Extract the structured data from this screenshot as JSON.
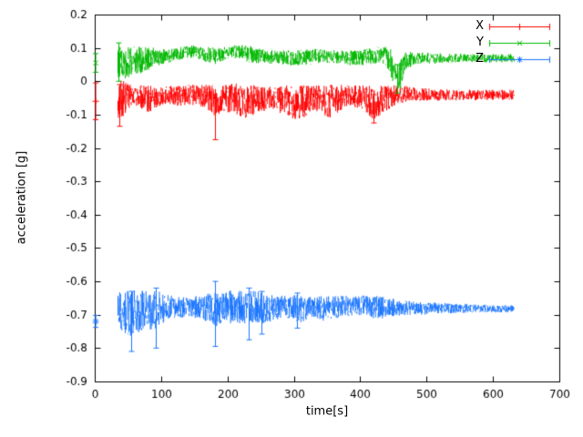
{
  "chart_data": {
    "type": "scatter",
    "title": "",
    "xlabel": "time[s]",
    "ylabel": "acceleration [g]",
    "xlim": [
      0,
      700
    ],
    "ylim": [
      -0.9,
      0.2
    ],
    "grid": false,
    "legend_position": "top-right",
    "axis_color": "#000000",
    "background": "#ffffff",
    "sample_dt": 0.65,
    "xticks": [
      {
        "v": 0,
        "label": "0"
      },
      {
        "v": 100,
        "label": "100"
      },
      {
        "v": 200,
        "label": "200"
      },
      {
        "v": 300,
        "label": "300"
      },
      {
        "v": 400,
        "label": "400"
      },
      {
        "v": 500,
        "label": "500"
      },
      {
        "v": 600,
        "label": "600"
      },
      {
        "v": 700,
        "label": "700"
      }
    ],
    "yticks": [
      {
        "v": 0.2,
        "label": "0.2"
      },
      {
        "v": 0.1,
        "label": "0.1"
      },
      {
        "v": 0,
        "label": "0"
      },
      {
        "v": -0.1,
        "label": "-0.1"
      },
      {
        "v": -0.2,
        "label": "-0.2"
      },
      {
        "v": -0.3,
        "label": "-0.3"
      },
      {
        "v": -0.4,
        "label": "-0.4"
      },
      {
        "v": -0.5,
        "label": "-0.5"
      },
      {
        "v": -0.6,
        "label": "-0.6"
      },
      {
        "v": -0.7,
        "label": "-0.7"
      },
      {
        "v": -0.8,
        "label": "-0.8"
      },
      {
        "v": -0.9,
        "label": "-0.9"
      }
    ],
    "series": [
      {
        "name": "X",
        "color": "#ff0000",
        "marker": "plus",
        "start_point": {
          "t": 1.5,
          "v": -0.06,
          "err": 0.055
        },
        "envelope": [
          [
            35,
            -0.045,
            0.075
          ],
          [
            42,
            -0.05,
            0.06
          ],
          [
            50,
            -0.045,
            0.04
          ],
          [
            60,
            -0.042,
            0.028
          ],
          [
            72,
            -0.05,
            0.038
          ],
          [
            85,
            -0.055,
            0.042
          ],
          [
            95,
            -0.045,
            0.03
          ],
          [
            110,
            -0.04,
            0.026
          ],
          [
            125,
            -0.042,
            0.03
          ],
          [
            140,
            -0.04,
            0.032
          ],
          [
            155,
            -0.042,
            0.03
          ],
          [
            170,
            -0.05,
            0.04
          ],
          [
            182,
            -0.055,
            0.05
          ],
          [
            195,
            -0.05,
            0.04
          ],
          [
            210,
            -0.05,
            0.045
          ],
          [
            225,
            -0.06,
            0.05
          ],
          [
            240,
            -0.055,
            0.045
          ],
          [
            255,
            -0.05,
            0.04
          ],
          [
            270,
            -0.05,
            0.035
          ],
          [
            285,
            -0.055,
            0.045
          ],
          [
            300,
            -0.065,
            0.05
          ],
          [
            315,
            -0.06,
            0.05
          ],
          [
            325,
            -0.05,
            0.04
          ],
          [
            340,
            -0.055,
            0.045
          ],
          [
            355,
            -0.06,
            0.05
          ],
          [
            368,
            -0.05,
            0.04
          ],
          [
            380,
            -0.042,
            0.03
          ],
          [
            395,
            -0.045,
            0.035
          ],
          [
            408,
            -0.05,
            0.04
          ],
          [
            420,
            -0.068,
            0.052
          ],
          [
            432,
            -0.055,
            0.045
          ],
          [
            445,
            -0.045,
            0.035
          ],
          [
            458,
            -0.04,
            0.03
          ],
          [
            470,
            -0.04,
            0.025
          ],
          [
            485,
            -0.038,
            0.02
          ],
          [
            510,
            -0.04,
            0.018
          ],
          [
            540,
            -0.04,
            0.016
          ],
          [
            580,
            -0.04,
            0.015
          ],
          [
            632,
            -0.04,
            0.015
          ]
        ],
        "spikes": [
          [
            37.5,
            -0.135,
            -0.01
          ],
          [
            181,
            -0.175,
            -0.05
          ],
          [
            420.5,
            -0.125,
            -0.04
          ]
        ]
      },
      {
        "name": "Y",
        "color": "#00b800",
        "marker": "cross",
        "start_point": {
          "t": 1.5,
          "v": 0.055,
          "err": 0.028
        },
        "envelope": [
          [
            35,
            0.06,
            0.05
          ],
          [
            45,
            0.055,
            0.048
          ],
          [
            55,
            0.06,
            0.045
          ],
          [
            68,
            0.065,
            0.042
          ],
          [
            80,
            0.07,
            0.035
          ],
          [
            92,
            0.072,
            0.028
          ],
          [
            105,
            0.075,
            0.022
          ],
          [
            120,
            0.08,
            0.02
          ],
          [
            135,
            0.088,
            0.018
          ],
          [
            150,
            0.09,
            0.018
          ],
          [
            165,
            0.082,
            0.02
          ],
          [
            178,
            0.075,
            0.028
          ],
          [
            190,
            0.08,
            0.022
          ],
          [
            205,
            0.088,
            0.02
          ],
          [
            218,
            0.09,
            0.02
          ],
          [
            232,
            0.082,
            0.026
          ],
          [
            245,
            0.078,
            0.024
          ],
          [
            260,
            0.075,
            0.022
          ],
          [
            275,
            0.075,
            0.02
          ],
          [
            290,
            0.072,
            0.022
          ],
          [
            305,
            0.07,
            0.024
          ],
          [
            320,
            0.074,
            0.024
          ],
          [
            335,
            0.076,
            0.022
          ],
          [
            350,
            0.075,
            0.02
          ],
          [
            365,
            0.074,
            0.02
          ],
          [
            380,
            0.072,
            0.022
          ],
          [
            395,
            0.07,
            0.024
          ],
          [
            410,
            0.074,
            0.026
          ],
          [
            425,
            0.08,
            0.024
          ],
          [
            438,
            0.078,
            0.026
          ],
          [
            448,
            0.05,
            0.045
          ],
          [
            455,
            0.005,
            0.035
          ],
          [
            461,
            0.025,
            0.05
          ],
          [
            468,
            0.06,
            0.03
          ],
          [
            478,
            0.068,
            0.02
          ],
          [
            495,
            0.07,
            0.016
          ],
          [
            530,
            0.07,
            0.014
          ],
          [
            570,
            0.07,
            0.012
          ],
          [
            632,
            0.07,
            0.012
          ]
        ],
        "spikes": [
          [
            36,
            0.0,
            0.115
          ],
          [
            455,
            -0.035,
            0.05
          ]
        ]
      },
      {
        "name": "Z",
        "color": "#1a75ff",
        "marker": "star",
        "start_point": {
          "t": 1.5,
          "v": -0.72,
          "err": 0.018
        },
        "envelope": [
          [
            35,
            -0.685,
            0.055
          ],
          [
            45,
            -0.69,
            0.065
          ],
          [
            55,
            -0.695,
            0.07
          ],
          [
            65,
            -0.69,
            0.065
          ],
          [
            75,
            -0.685,
            0.06
          ],
          [
            88,
            -0.685,
            0.065
          ],
          [
            98,
            -0.68,
            0.05
          ],
          [
            110,
            -0.677,
            0.038
          ],
          [
            125,
            -0.676,
            0.032
          ],
          [
            140,
            -0.676,
            0.03
          ],
          [
            155,
            -0.678,
            0.035
          ],
          [
            168,
            -0.68,
            0.042
          ],
          [
            180,
            -0.688,
            0.055
          ],
          [
            192,
            -0.68,
            0.045
          ],
          [
            205,
            -0.675,
            0.05
          ],
          [
            220,
            -0.672,
            0.055
          ],
          [
            235,
            -0.676,
            0.05
          ],
          [
            250,
            -0.678,
            0.048
          ],
          [
            265,
            -0.68,
            0.042
          ],
          [
            280,
            -0.676,
            0.035
          ],
          [
            295,
            -0.676,
            0.034
          ],
          [
            312,
            -0.68,
            0.044
          ],
          [
            328,
            -0.676,
            0.03
          ],
          [
            345,
            -0.679,
            0.038
          ],
          [
            362,
            -0.677,
            0.034
          ],
          [
            378,
            -0.673,
            0.03
          ],
          [
            395,
            -0.671,
            0.028
          ],
          [
            412,
            -0.676,
            0.034
          ],
          [
            428,
            -0.68,
            0.038
          ],
          [
            442,
            -0.676,
            0.028
          ],
          [
            458,
            -0.679,
            0.024
          ],
          [
            475,
            -0.679,
            0.022
          ],
          [
            495,
            -0.679,
            0.02
          ],
          [
            515,
            -0.679,
            0.017
          ],
          [
            540,
            -0.68,
            0.015
          ],
          [
            565,
            -0.68,
            0.013
          ],
          [
            595,
            -0.681,
            0.011
          ],
          [
            632,
            -0.681,
            0.01
          ]
        ],
        "spikes": [
          [
            55,
            -0.81,
            -0.63
          ],
          [
            92,
            -0.8,
            -0.62
          ],
          [
            181,
            -0.795,
            -0.6
          ],
          [
            232,
            -0.775,
            -0.62
          ],
          [
            251,
            -0.758,
            -0.63
          ],
          [
            305,
            -0.74,
            -0.635
          ]
        ]
      }
    ]
  }
}
